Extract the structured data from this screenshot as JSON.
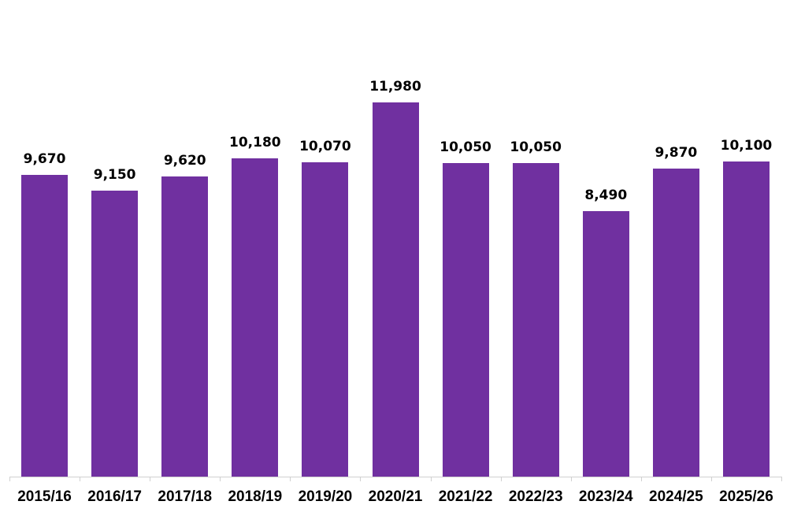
{
  "chart_data": {
    "type": "bar",
    "title": "",
    "xlabel": "",
    "ylabel": "",
    "categories": [
      "2015/16",
      "2016/17",
      "2017/18",
      "2018/19",
      "2019/20",
      "2020/21",
      "2021/22",
      "2022/23",
      "2023/24",
      "2024/25",
      "2025/26"
    ],
    "values": [
      9670,
      9150,
      9620,
      10180,
      10070,
      11980,
      10050,
      10050,
      8490,
      9870,
      10100
    ],
    "value_labels": [
      "9,670",
      "9,150",
      "9,620",
      "10,180",
      "10,070",
      "11,980",
      "10,050",
      "10,050",
      "8,490",
      "9,870",
      "10,100"
    ],
    "ylim": [
      0,
      12000
    ],
    "grid": false,
    "legend": null,
    "bar_color": "#7030a0"
  }
}
